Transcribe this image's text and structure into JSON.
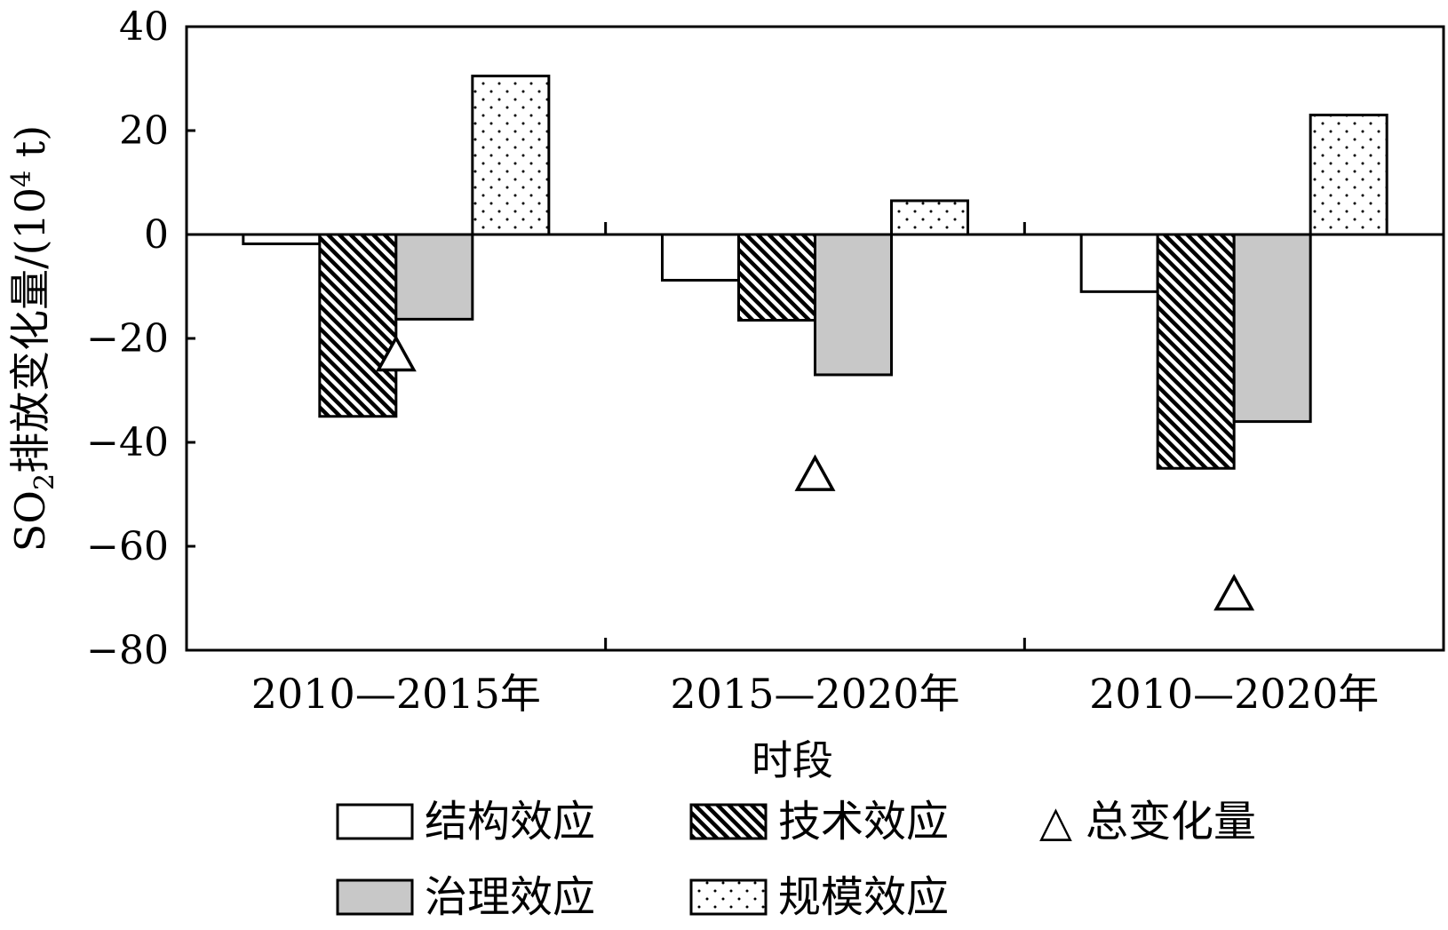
{
  "chart_data": {
    "type": "bar",
    "xlabel": "时段",
    "ylabel": {
      "prefix": "SO",
      "subscript": "2",
      "middle": "排放变化量/(10",
      "superscript": "4",
      "suffix": " t)"
    },
    "categories": [
      "2010—2015年",
      "2015—2020年",
      "2010—2020年"
    ],
    "ylim": [
      -80,
      40
    ],
    "yticks": [
      40,
      20,
      0,
      -20,
      -40,
      -60,
      -80
    ],
    "ytick_labels": [
      "40",
      "20",
      "0",
      "−20",
      "−40",
      "−60",
      "−80"
    ],
    "grid": false,
    "legend_position": "bottom",
    "series": [
      {
        "name": "结构效应",
        "values": [
          -1.8,
          -8.8,
          -11
        ],
        "pattern": "blank",
        "fill": "#ffffff"
      },
      {
        "name": "技术效应",
        "values": [
          -35,
          -16.5,
          -45
        ],
        "pattern": "hatch",
        "fill": "#000000"
      },
      {
        "name": "治理效应",
        "values": [
          -16.3,
          -27,
          -36
        ],
        "pattern": "solid",
        "fill": "#c8c8c8"
      },
      {
        "name": "规模效应",
        "values": [
          30.5,
          6.5,
          23
        ],
        "pattern": "dots",
        "fill": "#ffffff"
      }
    ],
    "markers": {
      "name": "总变化量",
      "symbol": "△",
      "values": [
        -23,
        -46,
        -69
      ]
    }
  }
}
